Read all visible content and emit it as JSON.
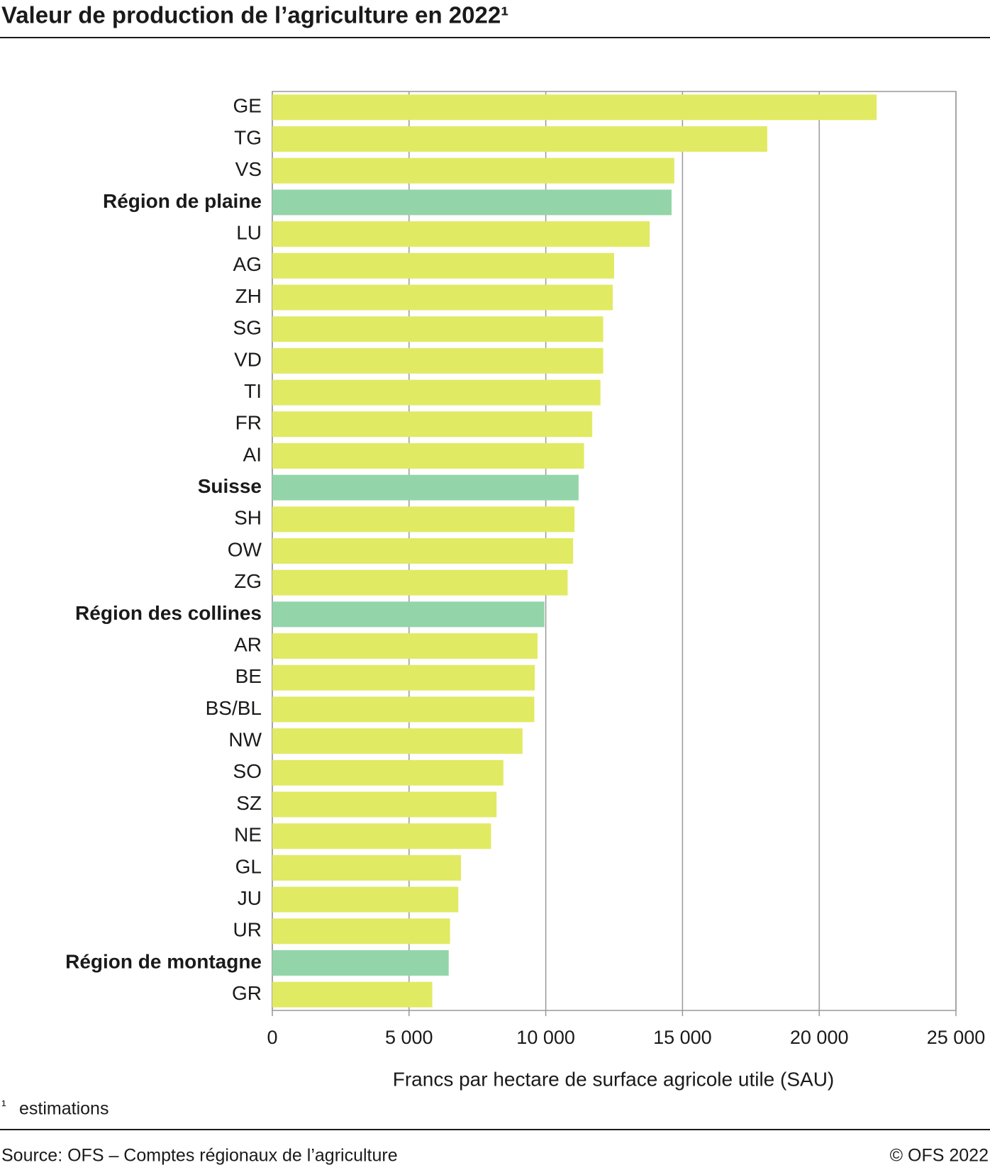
{
  "chart_data": {
    "type": "bar",
    "orientation": "horizontal",
    "title": "Valeur de production de l’agriculture en 2022¹",
    "x_label": "Francs par hectare de surface agricole utile (SAU)",
    "categories": [
      "GE",
      "TG",
      "VS",
      "Région de plaine",
      "LU",
      "AG",
      "ZH",
      "SG",
      "VD",
      "TI",
      "FR",
      "AI",
      "Suisse",
      "SH",
      "OW",
      "ZG",
      "Région des collines",
      "AR",
      "BE",
      "BS/BL",
      "NW",
      "SO",
      "SZ",
      "NE",
      "GL",
      "JU",
      "UR",
      "Région de montagne",
      "GR"
    ],
    "values": [
      22100,
      18100,
      14700,
      14600,
      13800,
      12500,
      12450,
      12100,
      12100,
      12000,
      11700,
      11400,
      11200,
      11050,
      11000,
      10800,
      9950,
      9700,
      9600,
      9580,
      9150,
      8450,
      8200,
      8000,
      6900,
      6800,
      6500,
      6450,
      5850
    ],
    "color": "#e1ea63",
    "colors": [
      "#e1ea63",
      "#e1ea63",
      "#e1ea63",
      "#93d5a9",
      "#e1ea63",
      "#e1ea63",
      "#e1ea63",
      "#e1ea63",
      "#e1ea63",
      "#e1ea63",
      "#e1ea63",
      "#e1ea63",
      "#93d5a9",
      "#e1ea63",
      "#e1ea63",
      "#e1ea63",
      "#93d5a9",
      "#e1ea63",
      "#e1ea63",
      "#e1ea63",
      "#e1ea63",
      "#e1ea63",
      "#e1ea63",
      "#e1ea63",
      "#e1ea63",
      "#e1ea63",
      "#e1ea63",
      "#93d5a9",
      "#e1ea63"
    ],
    "xlim": [
      0,
      25000
    ],
    "xticks": [
      0,
      {
        "value": 5000,
        "label": "5 000"
      },
      {
        "value": 10000,
        "label": "10 000"
      },
      {
        "value": 15000,
        "label": "15 000"
      },
      {
        "value": 20000,
        "label": "20 000"
      },
      {
        "value": 25000,
        "label": "25 000"
      }
    ],
    "grid": true
  },
  "footnote_mark": "¹",
  "footnote": "estimations",
  "source": "Source: OFS – Comptes régionaux de l’agriculture",
  "copyright": "© OFS 2022"
}
